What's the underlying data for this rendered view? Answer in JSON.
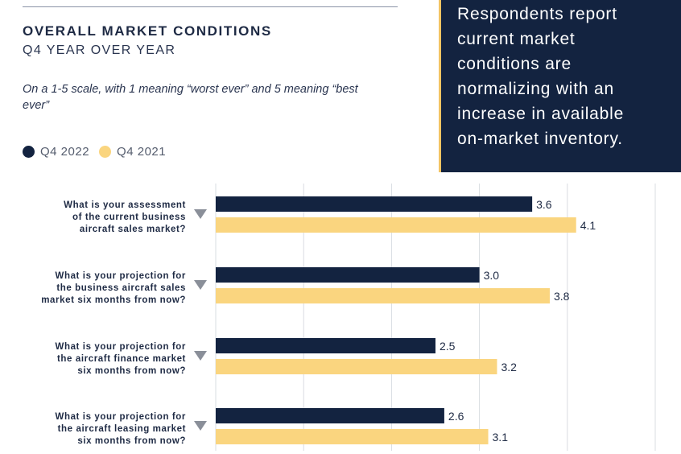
{
  "header": {
    "title": "OVERALL MARKET CONDITIONS",
    "subtitle": "Q4 YEAR OVER YEAR",
    "note": "On a 1-5 scale, with 1 meaning “worst ever” and 5 meaning “best ever”"
  },
  "legend": [
    {
      "label": "Q4 2022",
      "color": "#132340"
    },
    {
      "label": "Q4 2021",
      "color": "#fad57f"
    }
  ],
  "callout": {
    "text": "Respondents report\ncurrent market\nconditions are\nnormalizing with an\nincrease in available\non-market inventory."
  },
  "chart_data": {
    "type": "bar",
    "orientation": "horizontal",
    "categories": [
      [
        "What is your assessment",
        "of the current business",
        "aircraft sales market?"
      ],
      [
        "What is your projection for",
        "the business aircraft sales",
        "market six months from now?"
      ],
      [
        "What is your projection for",
        "the aircraft finance market",
        "six months from now?"
      ],
      [
        "What is your projection for",
        "the aircraft leasing market",
        "six months from now?"
      ]
    ],
    "series": [
      {
        "name": "Q4 2022",
        "color": "#132340",
        "values": [
          3.6,
          3.0,
          2.5,
          2.6
        ]
      },
      {
        "name": "Q4 2021",
        "color": "#fad57f",
        "values": [
          4.1,
          3.8,
          3.2,
          3.1
        ]
      }
    ],
    "xlim": [
      0,
      5
    ],
    "grid": true,
    "legend_position": "top-left",
    "marker_icon": "triangle-down-icon"
  }
}
